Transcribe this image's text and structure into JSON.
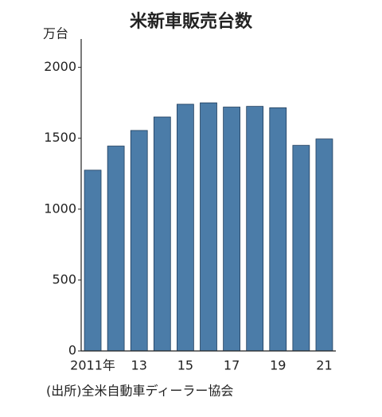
{
  "chart_data": {
    "type": "bar",
    "title": "米新車販売台数",
    "y_label": "万台",
    "source": "(出所)全米自動車ディーラー協会",
    "categories": [
      "2011年",
      null,
      "13",
      null,
      "15",
      null,
      "17",
      null,
      "19",
      null,
      "21"
    ],
    "values": [
      1275,
      1445,
      1555,
      1650,
      1740,
      1750,
      1720,
      1725,
      1715,
      1450,
      1495
    ],
    "color": "#4b7ca8",
    "ylim": [
      0,
      2200
    ],
    "yticks": [
      0,
      500,
      1000,
      1500,
      2000
    ],
    "grid": false
  }
}
